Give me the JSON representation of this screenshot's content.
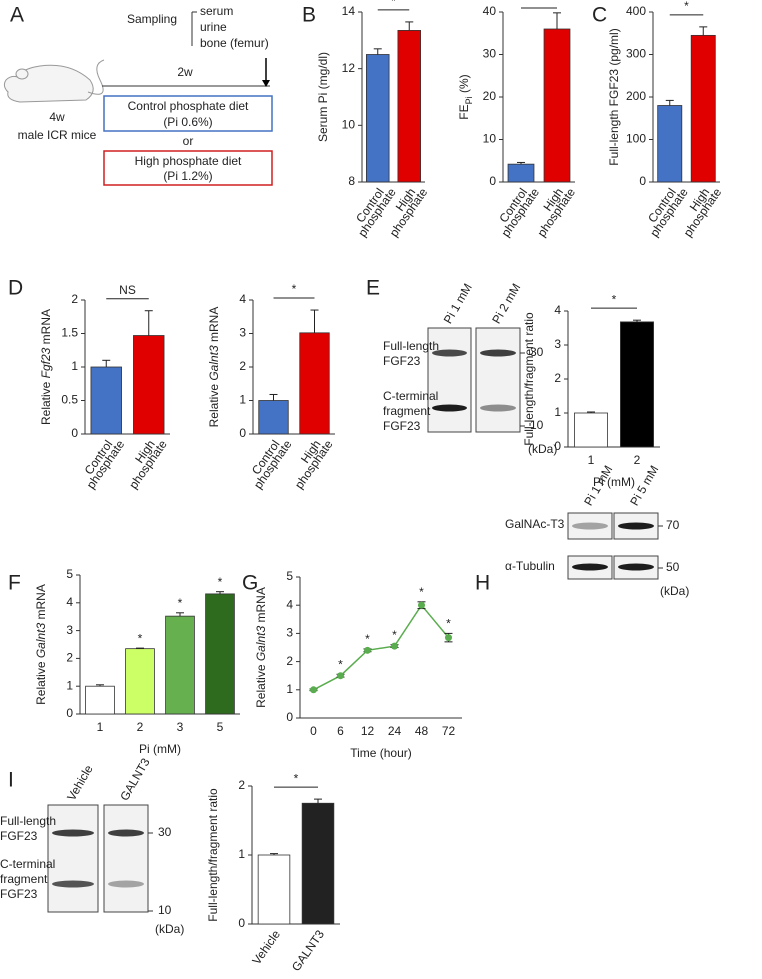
{
  "panels": [
    "A",
    "B",
    "C",
    "D",
    "E",
    "F",
    "G",
    "H",
    "I"
  ],
  "diagram_a": {
    "sampling": "Sampling",
    "samples": [
      "serum",
      "urine",
      "bone (femur)"
    ],
    "duration": "2w",
    "age": "4w",
    "mice": "male ICR mice",
    "diet_control": [
      "Control phosphate diet",
      "(Pi 0.6%)"
    ],
    "or": "or",
    "diet_high": [
      "High phosphate diet",
      "(Pi 1.2%)"
    ]
  },
  "blots": [
    {
      "lanes": [
        "Pi 1 mM",
        "Pi 2 mM"
      ],
      "rows": [
        [
          "Full-length",
          "FGF23"
        ],
        [
          "C-terminal",
          "fragment",
          "FGF23"
        ]
      ],
      "markers": [
        "30",
        "10"
      ],
      "unit": "(kDa)"
    },
    {
      "lanes": [
        "Pi 1 mM",
        "Pi 5 mM"
      ],
      "rows": [
        [
          "GalNAc-T3"
        ],
        [
          "α-Tubulin"
        ]
      ],
      "markers": [
        "70",
        "50"
      ],
      "unit": "(kDa)"
    },
    {
      "lanes": [
        "Vehicle",
        "GALNT3"
      ],
      "rows": [
        [
          "Full-length",
          "FGF23"
        ],
        [
          "C-terminal",
          "fragment",
          "FGF23"
        ]
      ],
      "markers": [
        "30",
        "10"
      ],
      "unit": "(kDa)"
    }
  ],
  "chart_data": [
    {
      "type": "bar",
      "ylabel": [
        "Serum Pi (mg/dl)"
      ],
      "ylabel_style": [
        "normal"
      ],
      "categories": [
        [
          "Control",
          "phosphate"
        ],
        [
          "High",
          "phosphate"
        ]
      ],
      "category_rotation": true,
      "values": [
        12.5,
        13.35
      ],
      "errors": [
        0.2,
        0.3
      ],
      "colors": [
        "#4472c4",
        "#e00000"
      ],
      "ylim": [
        8,
        14
      ],
      "yticks": [
        8,
        10,
        12,
        14
      ],
      "significance": "*"
    },
    {
      "type": "bar",
      "ylabel": [
        "FE",
        "Pi",
        " (%)"
      ],
      "ylabel_style": [
        "normal",
        "sub",
        "normal"
      ],
      "categories": [
        [
          "Control",
          "phosphate"
        ],
        [
          "High",
          "phosphate"
        ]
      ],
      "category_rotation": true,
      "values": [
        4.2,
        36
      ],
      "errors": [
        0.4,
        3.8
      ],
      "colors": [
        "#4472c4",
        "#e00000"
      ],
      "ylim": [
        0,
        40
      ],
      "yticks": [
        0,
        10,
        20,
        30,
        40
      ],
      "significance": "*"
    },
    {
      "type": "bar",
      "ylabel": [
        "Full-length FGF23 (pg/ml)"
      ],
      "ylabel_style": [
        "normal"
      ],
      "categories": [
        [
          "Control",
          "phosphate"
        ],
        [
          "High",
          "phosphate"
        ]
      ],
      "category_rotation": true,
      "values": [
        180,
        345
      ],
      "errors": [
        12,
        20
      ],
      "colors": [
        "#4472c4",
        "#e00000"
      ],
      "ylim": [
        0,
        400
      ],
      "yticks": [
        0,
        100,
        200,
        300,
        400
      ],
      "significance": "*"
    },
    {
      "type": "bar",
      "ylabel": [
        "Relative ",
        "Fgf23",
        " mRNA"
      ],
      "ylabel_style": [
        "normal",
        "italic",
        "normal"
      ],
      "categories": [
        [
          "Control",
          "phosphate"
        ],
        [
          "High",
          "phosphate"
        ]
      ],
      "category_rotation": true,
      "values": [
        1.0,
        1.47
      ],
      "errors": [
        0.1,
        0.37
      ],
      "colors": [
        "#4472c4",
        "#e00000"
      ],
      "ylim": [
        0,
        2
      ],
      "yticks": [
        0,
        0.5,
        1,
        1.5,
        2
      ],
      "significance": "NS"
    },
    {
      "type": "bar",
      "ylabel": [
        "Relative ",
        "Galnt3",
        " mRNA"
      ],
      "ylabel_style": [
        "normal",
        "italic",
        "normal"
      ],
      "categories": [
        [
          "Control",
          "phosphate"
        ],
        [
          "High",
          "phosphate"
        ]
      ],
      "category_rotation": true,
      "values": [
        1.0,
        3.02
      ],
      "errors": [
        0.18,
        0.68
      ],
      "colors": [
        "#4472c4",
        "#e00000"
      ],
      "ylim": [
        0,
        4
      ],
      "yticks": [
        0,
        1,
        2,
        3,
        4
      ],
      "significance": "*"
    },
    {
      "type": "bar",
      "ylabel": [
        "Full-length/fragment ratio"
      ],
      "ylabel_style": [
        "normal"
      ],
      "xlabel": "Pi (mM)",
      "categories": [
        [
          "1"
        ],
        [
          "2"
        ]
      ],
      "category_rotation": false,
      "values": [
        1.0,
        3.68
      ],
      "errors": [
        0.03,
        0.05
      ],
      "colors": [
        "#ffffff",
        "#000000"
      ],
      "ylim": [
        0,
        4
      ],
      "yticks": [
        0,
        1,
        2,
        3,
        4
      ],
      "significance": "*"
    },
    {
      "type": "bar",
      "ylabel": [
        "Relative ",
        "Galnt3",
        " mRNA"
      ],
      "ylabel_style": [
        "normal",
        "italic",
        "normal"
      ],
      "xlabel": "Pi (mM)",
      "categories": [
        [
          "1"
        ],
        [
          "2"
        ],
        [
          "3"
        ],
        [
          "5"
        ]
      ],
      "category_rotation": false,
      "values": [
        1.0,
        2.35,
        3.52,
        4.32
      ],
      "errors": [
        0.05,
        0.02,
        0.12,
        0.08
      ],
      "colors": [
        "#ffffff",
        "#ccff66",
        "#66b050",
        "#2e6b1f"
      ],
      "ylim": [
        0,
        5
      ],
      "yticks": [
        0,
        1,
        2,
        3,
        4,
        5
      ],
      "annotations": [
        null,
        "*",
        "*",
        "*"
      ]
    },
    {
      "type": "line",
      "ylabel": [
        "Relative ",
        "Galnt3",
        " mRNA"
      ],
      "ylabel_style": [
        "normal",
        "italic",
        "normal"
      ],
      "xlabel": "Time (hour)",
      "categories": [
        [
          "0"
        ],
        [
          "6"
        ],
        [
          "12"
        ],
        [
          "24"
        ],
        [
          "48"
        ],
        [
          "72"
        ]
      ],
      "category_rotation": false,
      "values": [
        1.0,
        1.5,
        2.4,
        2.55,
        4.0,
        2.85
      ],
      "errors": [
        0.03,
        0.05,
        0.05,
        0.05,
        0.12,
        0.15
      ],
      "color": "#5aad4e",
      "ylim": [
        0,
        5
      ],
      "yticks": [
        0,
        1,
        2,
        3,
        4,
        5
      ],
      "annotations": [
        null,
        "*",
        "*",
        "*",
        "*",
        "*"
      ]
    },
    {
      "type": "bar",
      "ylabel": [
        "Full-length/fragment ratio"
      ],
      "ylabel_style": [
        "normal"
      ],
      "categories": [
        [
          "Vehicle"
        ],
        [
          "GALNT3"
        ]
      ],
      "category_rotation": true,
      "values": [
        1.0,
        1.75
      ],
      "errors": [
        0.02,
        0.06
      ],
      "colors": [
        "#ffffff",
        "#222222"
      ],
      "ylim": [
        0,
        2
      ],
      "yticks": [
        0,
        1,
        2
      ],
      "significance": "*"
    }
  ]
}
